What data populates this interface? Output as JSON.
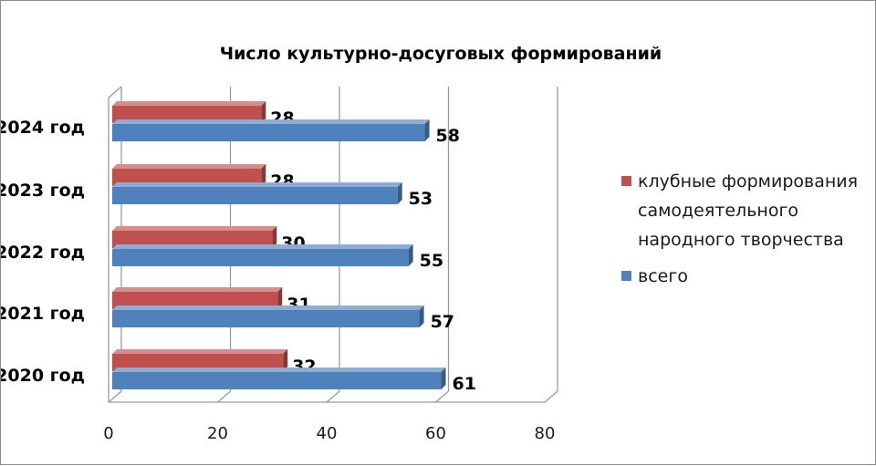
{
  "chart_data": {
    "type": "bar",
    "orientation": "horizontal",
    "title": "Число культурно-досуговых формирований",
    "categories": [
      "2024 год",
      "2023 год",
      "2022 год",
      "2021 год",
      "2020 год"
    ],
    "series": [
      {
        "name": "клубные формирования самодеятельного народного творчества",
        "values": [
          28,
          28,
          30,
          31,
          32
        ],
        "color": "#c0504d"
      },
      {
        "name": "всего",
        "values": [
          58,
          53,
          55,
          57,
          61
        ],
        "color": "#4f81bd"
      }
    ],
    "xlim": [
      0,
      80
    ],
    "x_ticks": [
      "0",
      "20",
      "40",
      "60",
      "80"
    ],
    "grid": true,
    "legend_position": "right",
    "data_labels": true,
    "style_3d": true
  }
}
